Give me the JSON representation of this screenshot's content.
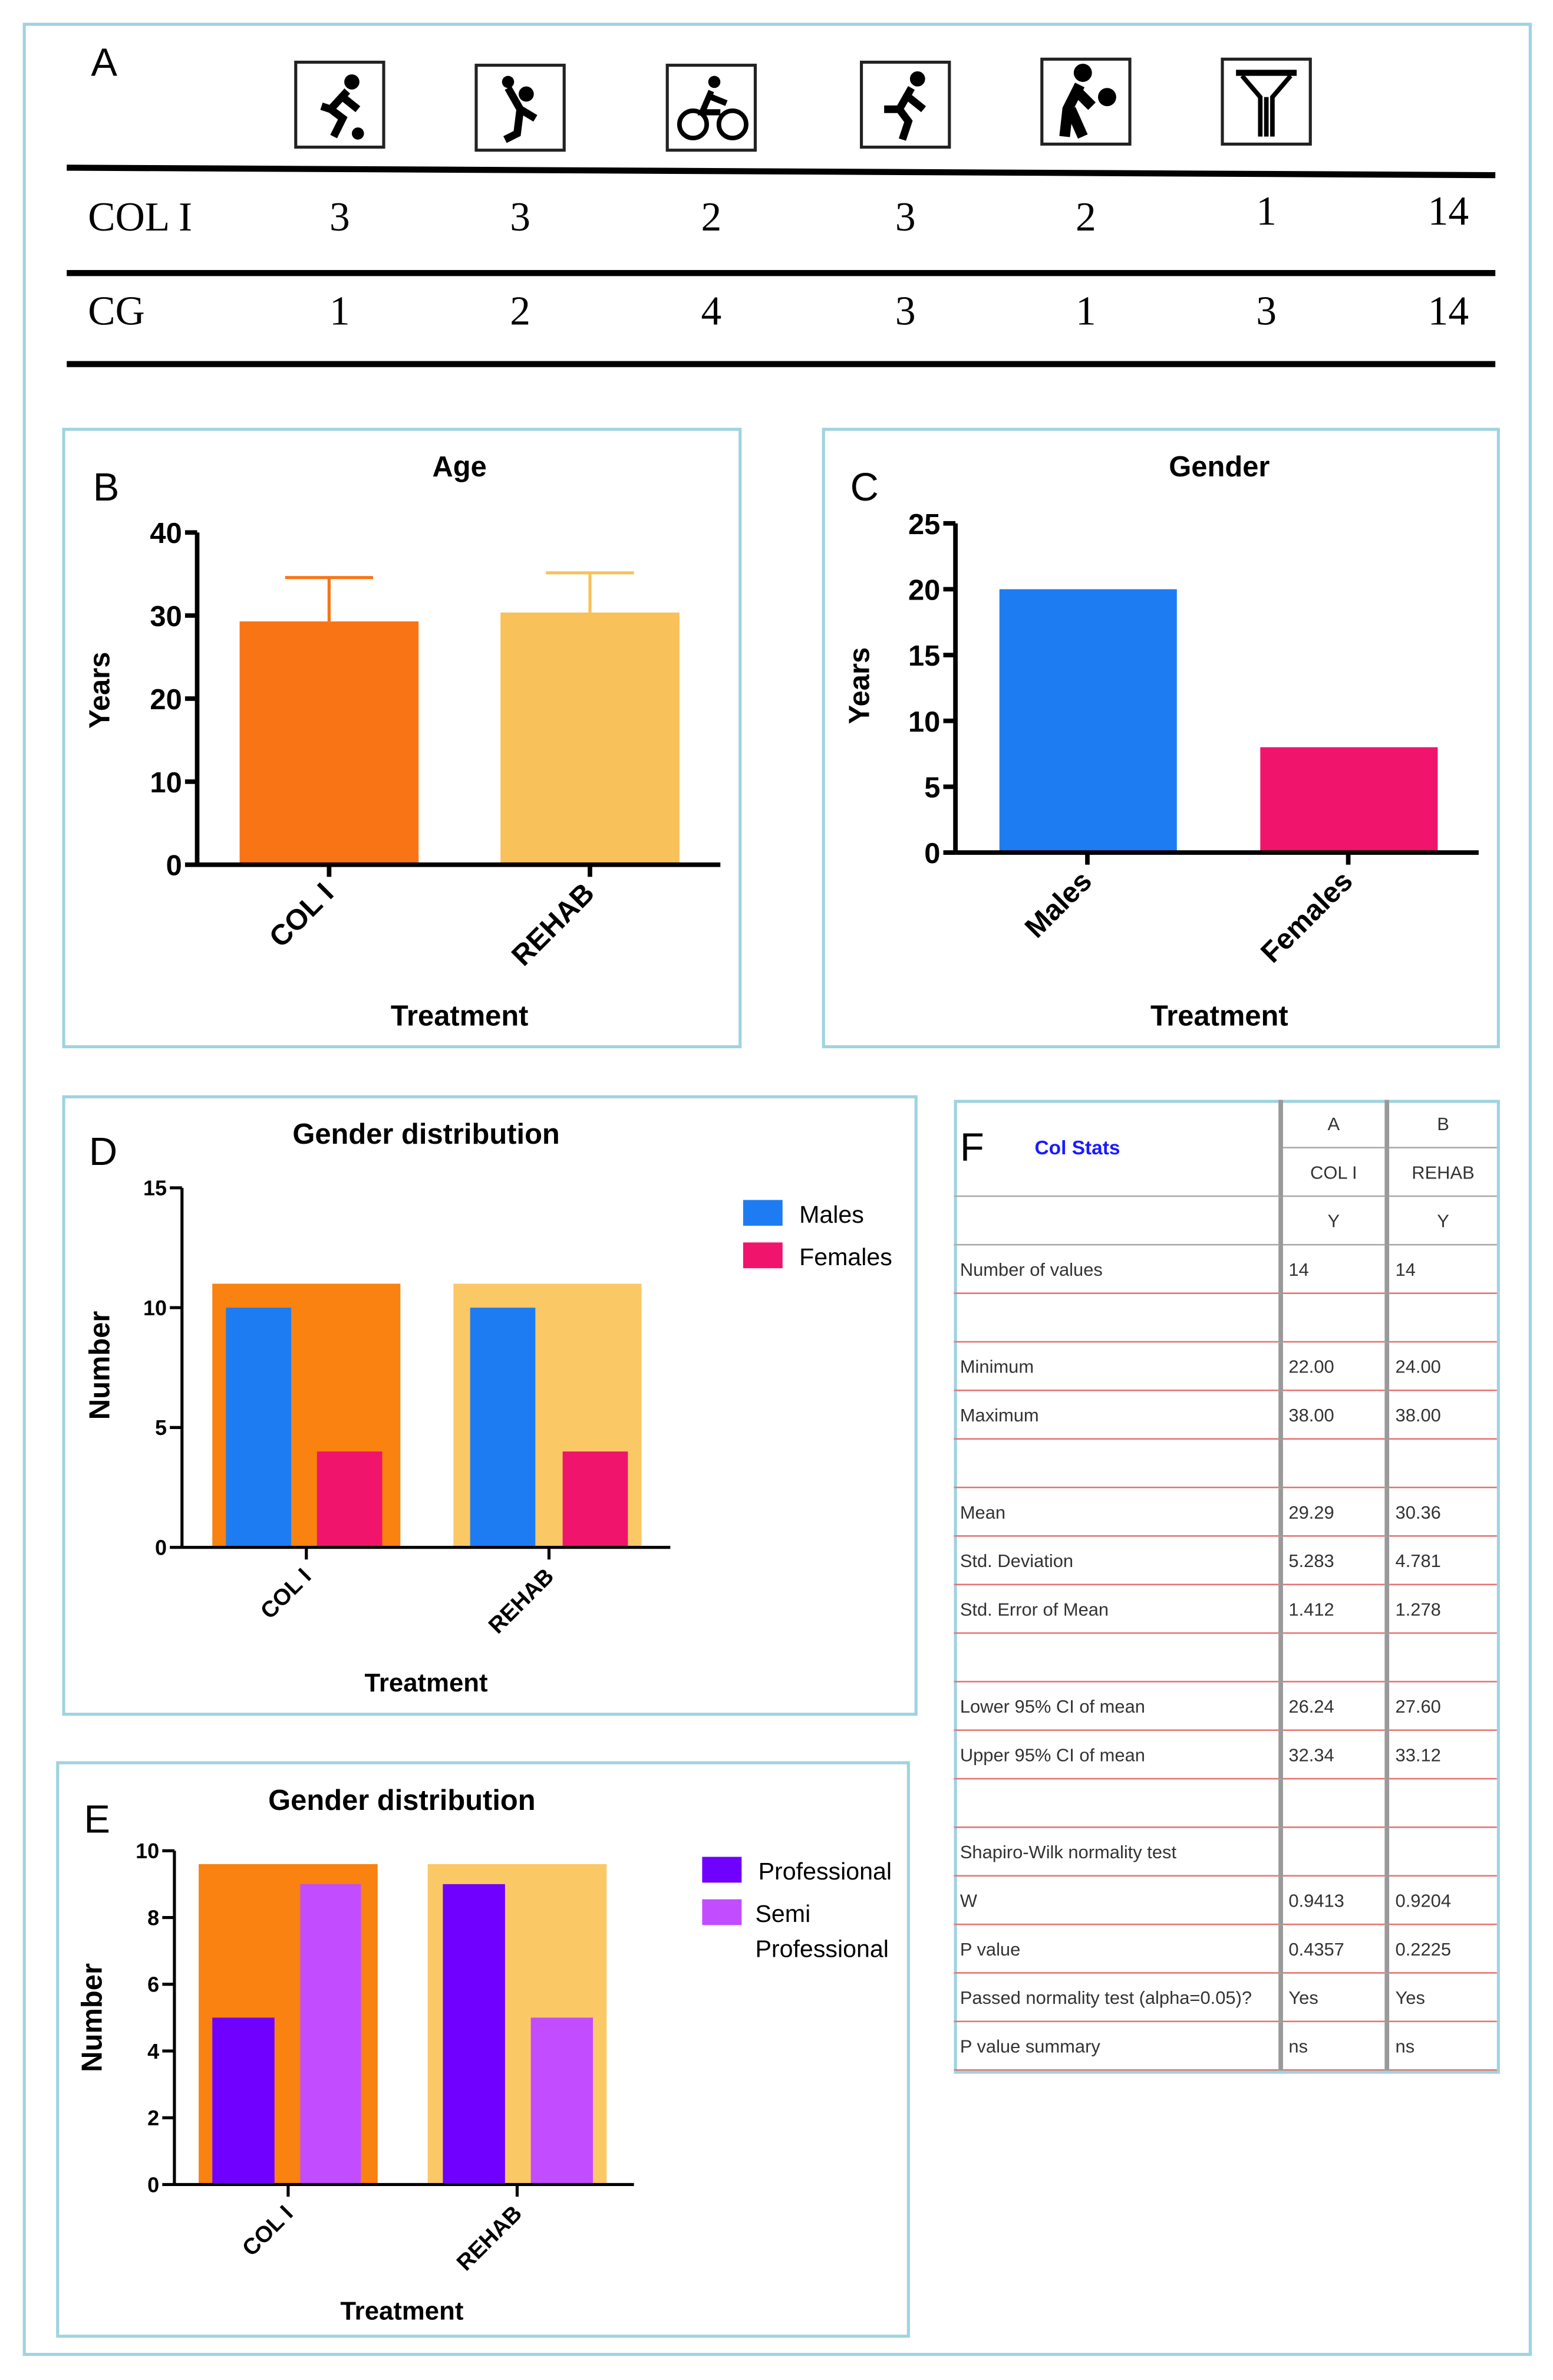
{
  "panel_a": {
    "label": "A",
    "icons": [
      "soccer-player-icon",
      "volleyball-player-icon",
      "cyclist-icon",
      "runner-icon",
      "basketball-player-icon",
      "weightlifter-icon"
    ],
    "rows": [
      {
        "name": "COL I",
        "values": [
          "3",
          "3",
          "2",
          "3",
          "2",
          "1",
          "14"
        ]
      },
      {
        "name": "CG",
        "values": [
          "1",
          "2",
          "4",
          "3",
          "1",
          "3",
          "14"
        ]
      }
    ]
  },
  "chart_data": [
    {
      "panel": "B",
      "type": "bar",
      "title": "Age",
      "xlabel": "Treatment",
      "ylabel": "Years",
      "categories": [
        "COL I",
        "REHAB"
      ],
      "values": [
        29.29,
        30.36
      ],
      "error": [
        5.283,
        4.781
      ],
      "ylim": [
        0,
        40
      ],
      "yticks": [
        0,
        10,
        20,
        30,
        40
      ],
      "colors": [
        "#f97414",
        "#f9c159"
      ],
      "grid": false
    },
    {
      "panel": "C",
      "type": "bar",
      "title": "Gender",
      "xlabel": "Treatment",
      "ylabel": "Years",
      "categories": [
        "Males",
        "Females"
      ],
      "values": [
        20,
        8
      ],
      "ylim": [
        0,
        25
      ],
      "yticks": [
        0,
        5,
        10,
        15,
        20,
        25
      ],
      "colors": [
        "#1e7cf2",
        "#f0146c"
      ],
      "grid": false
    },
    {
      "panel": "D",
      "type": "bar",
      "title": "Gender distribution",
      "xlabel": "Treatment",
      "ylabel": "Number",
      "categories": [
        "COL I",
        "REHAB"
      ],
      "group_totals": [
        11,
        11
      ],
      "group_colors": [
        "#f98210",
        "#fbc866"
      ],
      "series": [
        {
          "name": "Males",
          "values": [
            10,
            10
          ],
          "color": "#1e7cf2"
        },
        {
          "name": "Females",
          "values": [
            4,
            4
          ],
          "color": "#f0146c"
        }
      ],
      "ylim": [
        0,
        15
      ],
      "yticks": [
        0,
        5,
        10,
        15
      ],
      "legend": "top-right",
      "grid": false
    },
    {
      "panel": "E",
      "type": "bar",
      "title": "Gender distribution",
      "xlabel": "Treatment",
      "ylabel": "Number",
      "categories": [
        "COL I",
        "REHAB"
      ],
      "group_totals": [
        9.6,
        9.6
      ],
      "group_colors": [
        "#f98210",
        "#fbc866"
      ],
      "series": [
        {
          "name": "Professional",
          "values": [
            5,
            9
          ],
          "color": "#7000ff"
        },
        {
          "name": "Semi Professional",
          "values": [
            9,
            5
          ],
          "color": "#c24cff"
        }
      ],
      "ylim": [
        0,
        10
      ],
      "yticks": [
        0,
        2,
        4,
        6,
        8,
        10
      ],
      "legend": "top-right",
      "grid": false
    }
  ],
  "panel_f": {
    "label": "F",
    "title": "Col Stats",
    "title_color": "#1a1aff",
    "col_letters": [
      "A",
      "B"
    ],
    "col_names": [
      "COL I",
      "REHAB"
    ],
    "col_types": [
      "Y",
      "Y"
    ],
    "rows": [
      {
        "label": "Number of values",
        "a": "14",
        "b": "14"
      },
      {
        "label": "",
        "a": "",
        "b": ""
      },
      {
        "label": "Minimum",
        "a": "22.00",
        "b": "24.00"
      },
      {
        "label": "Maximum",
        "a": "38.00",
        "b": "38.00"
      },
      {
        "label": "",
        "a": "",
        "b": ""
      },
      {
        "label": "Mean",
        "a": "29.29",
        "b": "30.36"
      },
      {
        "label": "Std. Deviation",
        "a": "5.283",
        "b": "4.781"
      },
      {
        "label": "Std. Error of Mean",
        "a": "1.412",
        "b": "1.278"
      },
      {
        "label": "",
        "a": "",
        "b": ""
      },
      {
        "label": "Lower 95% CI of mean",
        "a": "26.24",
        "b": "27.60"
      },
      {
        "label": "Upper 95% CI of mean",
        "a": "32.34",
        "b": "33.12"
      },
      {
        "label": "",
        "a": "",
        "b": ""
      },
      {
        "label": "Shapiro-Wilk normality test",
        "a": "",
        "b": ""
      },
      {
        "label": "W",
        "a": "0.9413",
        "b": "0.9204"
      },
      {
        "label": "P value",
        "a": "0.4357",
        "b": "0.2225"
      },
      {
        "label": "Passed normality test (alpha=0.05)?",
        "a": "Yes",
        "b": "Yes"
      },
      {
        "label": "P value summary",
        "a": "ns",
        "b": "ns"
      }
    ]
  }
}
